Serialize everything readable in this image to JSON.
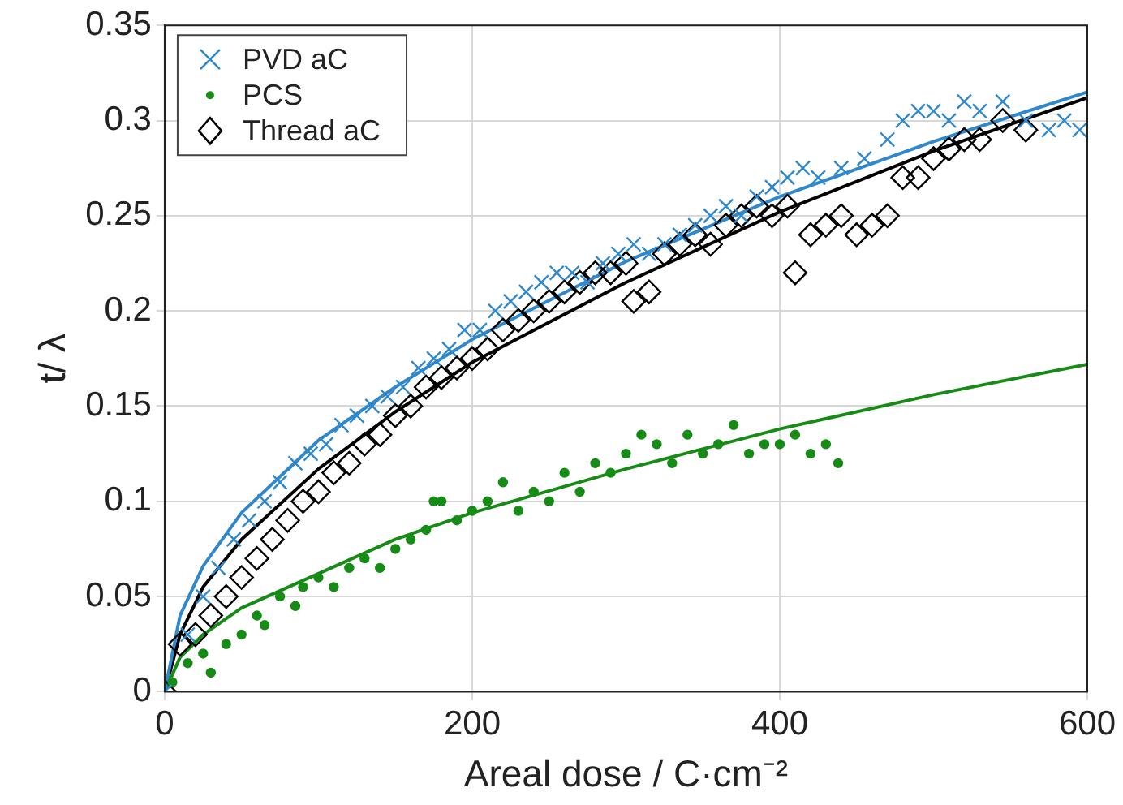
{
  "chart_data": {
    "type": "scatter",
    "xlabel": "Areal dose / C·cm⁻²",
    "ylabel": "t/ λ",
    "xlim": [
      0,
      600
    ],
    "xticks": [
      0,
      200,
      400,
      600
    ],
    "ylim": [
      0,
      0.35
    ],
    "yticks": [
      0,
      0.05,
      0.1,
      0.15,
      0.2,
      0.25,
      0.3,
      0.35
    ],
    "grid": true,
    "legend": "top left",
    "series": [
      {
        "name": "PVD aC",
        "marker": "cross",
        "color": "#2f88cc",
        "x": [
          0,
          15,
          25,
          35,
          45,
          55,
          65,
          75,
          85,
          95,
          105,
          115,
          125,
          135,
          145,
          155,
          165,
          175,
          185,
          195,
          205,
          215,
          225,
          235,
          245,
          255,
          265,
          275,
          285,
          295,
          305,
          315,
          325,
          335,
          345,
          355,
          365,
          375,
          385,
          395,
          405,
          415,
          425,
          440,
          455,
          470,
          480,
          490,
          500,
          510,
          520,
          530,
          545,
          560,
          575,
          585,
          595
        ],
        "values": [
          0,
          0.03,
          0.05,
          0.065,
          0.08,
          0.09,
          0.1,
          0.11,
          0.12,
          0.125,
          0.13,
          0.14,
          0.145,
          0.15,
          0.155,
          0.16,
          0.17,
          0.175,
          0.18,
          0.19,
          0.19,
          0.2,
          0.205,
          0.21,
          0.215,
          0.22,
          0.22,
          0.215,
          0.225,
          0.23,
          0.235,
          0.23,
          0.235,
          0.24,
          0.245,
          0.25,
          0.255,
          0.25,
          0.26,
          0.265,
          0.27,
          0.275,
          0.27,
          0.275,
          0.28,
          0.29,
          0.3,
          0.305,
          0.305,
          0.3,
          0.31,
          0.305,
          0.31,
          0.3,
          0.295,
          0.3,
          0.295
        ]
      },
      {
        "name": "PCS",
        "marker": "circle",
        "color": "#168c16",
        "x": [
          5,
          15,
          25,
          30,
          40,
          50,
          60,
          65,
          75,
          85,
          90,
          100,
          110,
          120,
          130,
          140,
          150,
          160,
          170,
          175,
          180,
          190,
          200,
          210,
          220,
          230,
          240,
          250,
          260,
          270,
          280,
          290,
          300,
          310,
          320,
          330,
          340,
          350,
          360,
          370,
          380,
          390,
          400,
          410,
          420,
          430,
          438
        ],
        "values": [
          0.005,
          0.015,
          0.02,
          0.01,
          0.025,
          0.03,
          0.04,
          0.035,
          0.05,
          0.045,
          0.055,
          0.06,
          0.055,
          0.065,
          0.07,
          0.065,
          0.075,
          0.08,
          0.085,
          0.1,
          0.1,
          0.09,
          0.095,
          0.1,
          0.11,
          0.095,
          0.105,
          0.1,
          0.115,
          0.105,
          0.12,
          0.115,
          0.125,
          0.135,
          0.13,
          0.12,
          0.135,
          0.125,
          0.13,
          0.14,
          0.125,
          0.13,
          0.13,
          0.135,
          0.125,
          0.13,
          0.12
        ]
      },
      {
        "name": "Thread aC",
        "marker": "diamond",
        "color": "#000000",
        "x": [
          0,
          10,
          20,
          30,
          40,
          50,
          60,
          70,
          80,
          90,
          100,
          110,
          120,
          130,
          140,
          150,
          160,
          170,
          180,
          190,
          200,
          210,
          220,
          230,
          240,
          250,
          260,
          270,
          280,
          290,
          300,
          305,
          315,
          325,
          335,
          345,
          355,
          365,
          375,
          385,
          395,
          405,
          410,
          420,
          430,
          440,
          450,
          460,
          470,
          480,
          490,
          500,
          510,
          520,
          530,
          545,
          560
        ],
        "values": [
          0,
          0.025,
          0.03,
          0.04,
          0.05,
          0.06,
          0.07,
          0.08,
          0.09,
          0.1,
          0.105,
          0.115,
          0.12,
          0.13,
          0.135,
          0.145,
          0.15,
          0.16,
          0.165,
          0.17,
          0.175,
          0.18,
          0.19,
          0.195,
          0.2,
          0.205,
          0.21,
          0.215,
          0.22,
          0.22,
          0.225,
          0.205,
          0.21,
          0.23,
          0.235,
          0.24,
          0.235,
          0.245,
          0.25,
          0.255,
          0.25,
          0.255,
          0.22,
          0.24,
          0.245,
          0.25,
          0.24,
          0.245,
          0.25,
          0.27,
          0.27,
          0.28,
          0.285,
          0.29,
          0.29,
          0.3,
          0.295
        ]
      },
      {
        "type": "line",
        "marker": "none",
        "color": "#2f88cc",
        "x": [
          0,
          10,
          25,
          50,
          100,
          150,
          200,
          300,
          400,
          500,
          600
        ],
        "values": [
          0,
          0.04,
          0.066,
          0.094,
          0.132,
          0.16,
          0.185,
          0.226,
          0.26,
          0.289,
          0.315
        ]
      },
      {
        "type": "line",
        "marker": "none",
        "color": "#168c16",
        "x": [
          0,
          10,
          25,
          50,
          100,
          150,
          200,
          300,
          400,
          500,
          600
        ],
        "values": [
          0,
          0.018,
          0.03,
          0.044,
          0.062,
          0.08,
          0.094,
          0.117,
          0.138,
          0.156,
          0.172
        ]
      },
      {
        "type": "line",
        "marker": "none",
        "color": "#000000",
        "x": [
          0,
          10,
          25,
          50,
          100,
          150,
          200,
          300,
          400,
          500,
          600
        ],
        "values": [
          0,
          0.03,
          0.055,
          0.08,
          0.117,
          0.147,
          0.173,
          0.215,
          0.252,
          0.284,
          0.312
        ]
      }
    ]
  }
}
